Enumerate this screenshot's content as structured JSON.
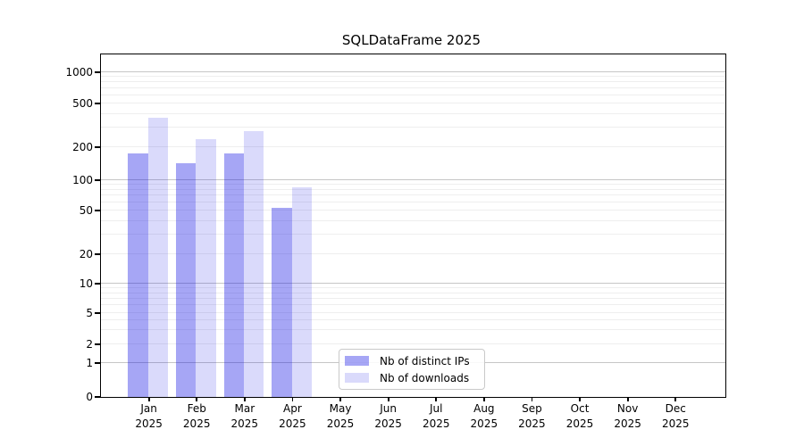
{
  "figure": {
    "title": "SQLDataFrame 2025"
  },
  "chart_data": {
    "type": "bar",
    "title": "SQLDataFrame 2025",
    "xlabel": "",
    "ylabel": "",
    "y_scale": "symlog",
    "ylim": [
      0,
      1470
    ],
    "grid": true,
    "legend_position": "inside-bottom-center",
    "y_ticks": [
      0,
      1,
      2,
      5,
      10,
      20,
      50,
      100,
      200,
      500,
      1000
    ],
    "categories": [
      {
        "month": "Jan",
        "year": "2025"
      },
      {
        "month": "Feb",
        "year": "2025"
      },
      {
        "month": "Mar",
        "year": "2025"
      },
      {
        "month": "Apr",
        "year": "2025"
      },
      {
        "month": "May",
        "year": "2025"
      },
      {
        "month": "Jun",
        "year": "2025"
      },
      {
        "month": "Jul",
        "year": "2025"
      },
      {
        "month": "Aug",
        "year": "2025"
      },
      {
        "month": "Sep",
        "year": "2025"
      },
      {
        "month": "Oct",
        "year": "2025"
      },
      {
        "month": "Nov",
        "year": "2025"
      },
      {
        "month": "Dec",
        "year": "2025"
      }
    ],
    "series": [
      {
        "name": "Nb of distinct IPs",
        "color": "rgba(8,8,228,0.36)",
        "values": [
          175,
          140,
          175,
          53,
          0,
          0,
          0,
          0,
          0,
          0,
          0,
          0
        ]
      },
      {
        "name": "Nb of downloads",
        "color": "rgba(8,8,228,0.15)",
        "values": [
          370,
          235,
          280,
          84,
          0,
          0,
          0,
          0,
          0,
          0,
          0,
          0
        ]
      }
    ]
  }
}
